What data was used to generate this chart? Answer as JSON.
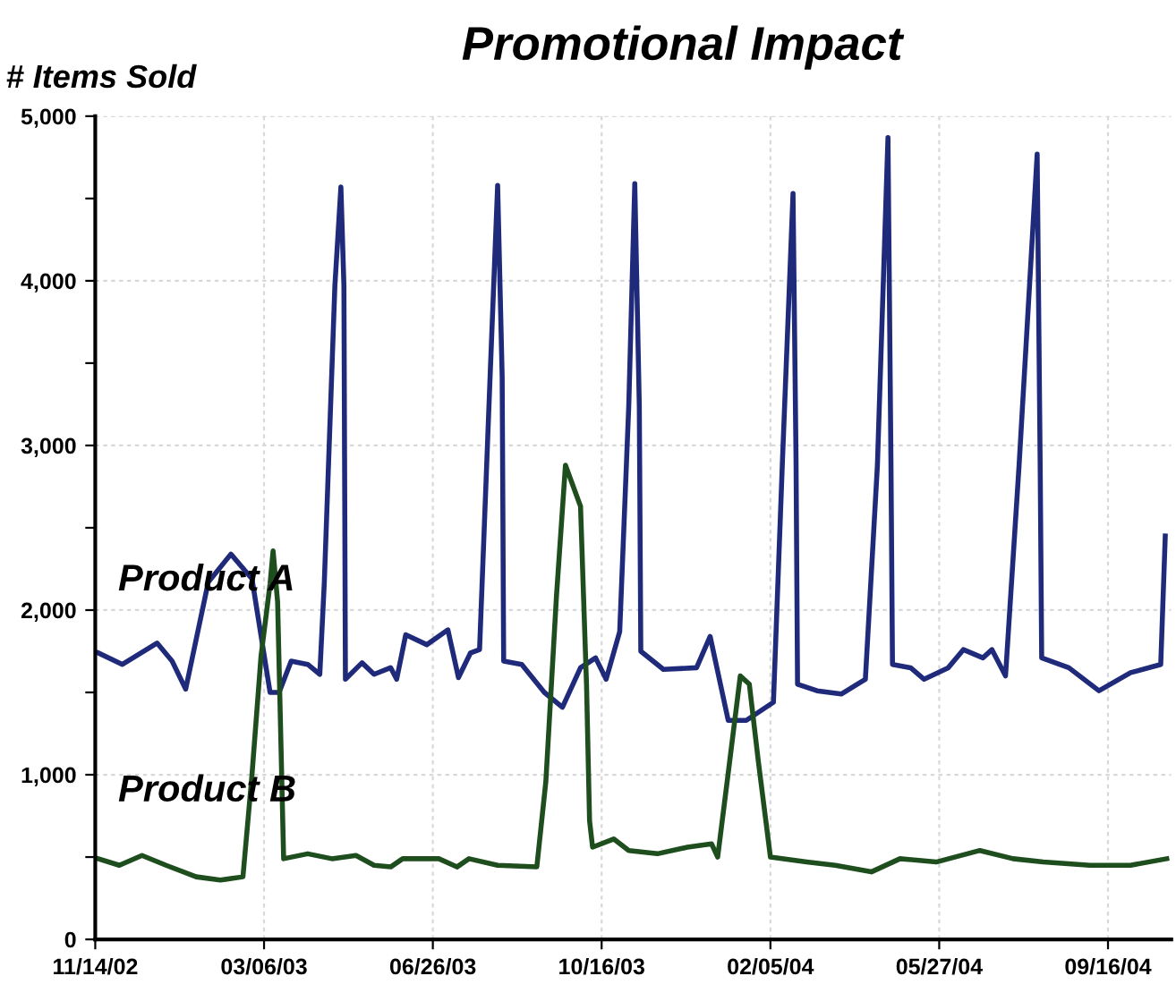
{
  "chart_data": {
    "type": "line",
    "title": "Promotional Impact",
    "ylabel": "# Items Sold",
    "xlim": [
      "2002-11-14",
      "2004-10-28"
    ],
    "xticks": [
      {
        "value": "2002-11-14",
        "label": "11/14/02"
      },
      {
        "value": "2003-03-06",
        "label": "03/06/03"
      },
      {
        "value": "2003-06-26",
        "label": "06/26/03"
      },
      {
        "value": "2003-10-16",
        "label": "10/16/03"
      },
      {
        "value": "2004-02-05",
        "label": "02/05/04"
      },
      {
        "value": "2004-05-27",
        "label": "05/27/04"
      },
      {
        "value": "2004-09-16",
        "label": "09/16/04"
      }
    ],
    "ylim": [
      0,
      5000
    ],
    "yticks": [
      0,
      {
        "value": 500,
        "label": null
      },
      {
        "value": 1000,
        "label": "1,000"
      },
      {
        "value": 1500,
        "label": null
      },
      {
        "value": 2000,
        "label": "2,000"
      },
      {
        "value": 2500,
        "label": null
      },
      {
        "value": 3000,
        "label": "3,000"
      },
      {
        "value": 3500,
        "label": null
      },
      {
        "value": 4000,
        "label": "4,000"
      },
      {
        "value": 4500,
        "label": null
      },
      {
        "value": 5000,
        "label": "5,000"
      }
    ],
    "grid": true,
    "legend": false,
    "marker": "none",
    "line_style": "solid",
    "series": [
      {
        "name": "Product A",
        "color": "#1f2a7a",
        "x": [
          "2002-11-16",
          "2002-12-02",
          "2002-12-25",
          "2003-01-04",
          "2003-01-13",
          "2003-01-28",
          "2003-02-12",
          "2003-02-26",
          "2003-03-10",
          "2003-03-16",
          "2003-03-24",
          "2003-04-04",
          "2003-04-12",
          "2003-04-15",
          "2003-04-22",
          "2003-04-26",
          "2003-04-28",
          "2003-04-29",
          "2003-05-10",
          "2003-05-18",
          "2003-05-29",
          "2003-06-02",
          "2003-06-08",
          "2003-06-22",
          "2003-07-06",
          "2003-07-13",
          "2003-07-21",
          "2003-07-27",
          "2003-08-03",
          "2003-08-08",
          "2003-08-11",
          "2003-08-12",
          "2003-08-24",
          "2003-09-08",
          "2003-09-20",
          "2003-10-02",
          "2003-10-12",
          "2003-10-19",
          "2003-10-28",
          "2003-11-03",
          "2003-11-07",
          "2003-11-10",
          "2003-11-11",
          "2003-11-26",
          "2003-12-18",
          "2003-12-27",
          "2004-01-08",
          "2004-01-20",
          "2004-02-07",
          "2004-02-13",
          "2004-02-20",
          "2004-02-22",
          "2004-02-23",
          "2004-03-07",
          "2004-03-23",
          "2004-04-08",
          "2004-04-16",
          "2004-04-23",
          "2004-04-25",
          "2004-04-26",
          "2004-05-08",
          "2004-05-17",
          "2004-06-02",
          "2004-06-12",
          "2004-06-25",
          "2004-07-01",
          "2004-07-10",
          "2004-07-19",
          "2004-07-31",
          "2004-08-02",
          "2004-08-03",
          "2004-08-21",
          "2004-09-10",
          "2004-10-01",
          "2004-10-21",
          "2004-10-24"
        ],
        "values": [
          1740,
          1670,
          1800,
          1690,
          1520,
          2170,
          2340,
          2190,
          1500,
          1500,
          1690,
          1670,
          1610,
          2170,
          3970,
          4570,
          3970,
          1580,
          1680,
          1610,
          1650,
          1580,
          1850,
          1790,
          1880,
          1590,
          1740,
          1760,
          3420,
          4580,
          3420,
          1690,
          1670,
          1500,
          1410,
          1650,
          1710,
          1580,
          1870,
          3240,
          4590,
          3240,
          1750,
          1640,
          1650,
          1840,
          1330,
          1330,
          1440,
          2910,
          4530,
          2910,
          1550,
          1510,
          1490,
          1580,
          2880,
          4870,
          2880,
          1670,
          1650,
          1580,
          1650,
          1760,
          1710,
          1760,
          1600,
          2880,
          4770,
          2880,
          1710,
          1650,
          1510,
          1620,
          1670,
          2450
        ]
      },
      {
        "name": "Product B",
        "color": "#1e4d1e",
        "x": [
          "2002-11-16",
          "2002-11-30",
          "2002-12-15",
          "2002-12-31",
          "2003-01-20",
          "2003-02-05",
          "2003-02-20",
          "2003-02-26",
          "2003-03-04",
          "2003-03-10",
          "2003-03-12",
          "2003-03-15",
          "2003-03-19",
          "2003-04-04",
          "2003-04-20",
          "2003-05-06",
          "2003-05-18",
          "2003-05-29",
          "2003-06-06",
          "2003-06-30",
          "2003-07-12",
          "2003-07-20",
          "2003-08-08",
          "2003-09-03",
          "2003-09-09",
          "2003-09-16",
          "2003-09-22",
          "2003-10-02",
          "2003-10-06",
          "2003-10-08",
          "2003-10-10",
          "2003-10-24",
          "2003-11-03",
          "2003-11-22",
          "2003-12-12",
          "2003-12-28",
          "2004-01-01",
          "2004-01-08",
          "2004-01-16",
          "2004-01-22",
          "2004-01-28",
          "2004-02-05",
          "2004-02-29",
          "2004-03-19",
          "2004-04-12",
          "2004-05-01",
          "2004-05-25",
          "2004-06-23",
          "2004-07-15",
          "2004-08-04",
          "2004-09-04",
          "2004-10-01",
          "2004-10-25"
        ],
        "values": [
          490,
          450,
          510,
          450,
          380,
          360,
          380,
          1000,
          1720,
          2160,
          2360,
          2050,
          490,
          520,
          490,
          510,
          450,
          440,
          490,
          490,
          440,
          490,
          450,
          440,
          960,
          2080,
          2880,
          2630,
          1540,
          720,
          560,
          610,
          540,
          520,
          560,
          580,
          500,
          1010,
          1600,
          1550,
          1080,
          500,
          470,
          450,
          410,
          490,
          470,
          540,
          490,
          470,
          450,
          450,
          490
        ]
      }
    ]
  }
}
